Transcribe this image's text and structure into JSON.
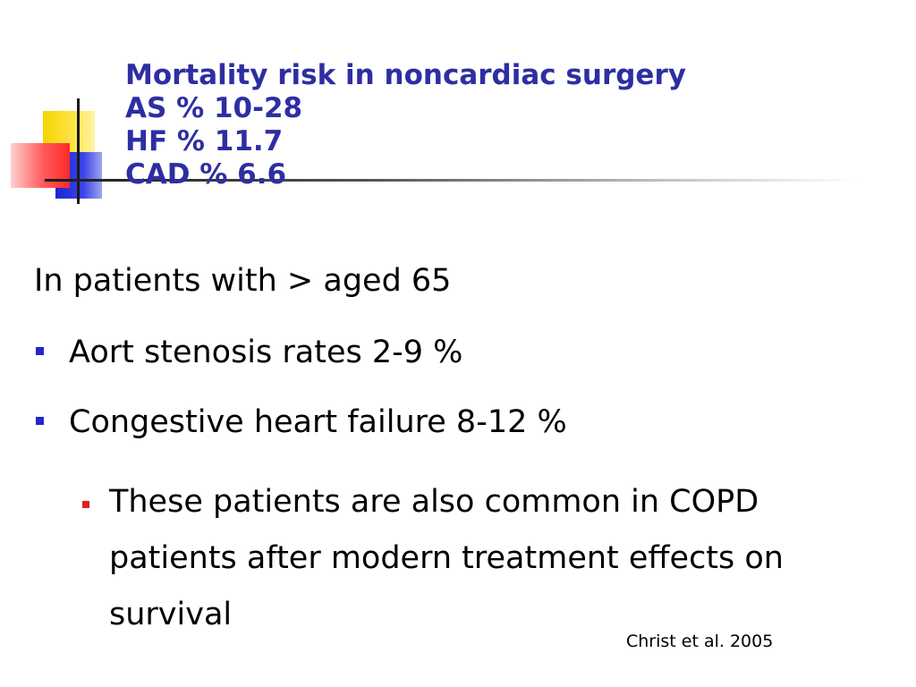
{
  "title": {
    "lines": [
      "Mortality risk in noncardiac surgery",
      "AS % 10-28",
      "HF % 11.7",
      "CAD % 6.6"
    ]
  },
  "body": {
    "intro": "In patients with > aged 65",
    "bullets": [
      "Aort stenosis rates 2-9 %",
      "Congestive heart failure 8-12 %"
    ],
    "sub_bullet": "These patients are also common in COPD patients after modern treatment effects on survival"
  },
  "citation": "Christ et al. 2005",
  "colors": {
    "title": "#2e2ea3",
    "bullet_blue": "#2525c8",
    "bullet_red": "#e02020",
    "deco_yellow": "#f5d400",
    "deco_blue": "#1a26d6",
    "deco_red": "#ff2a2a"
  }
}
